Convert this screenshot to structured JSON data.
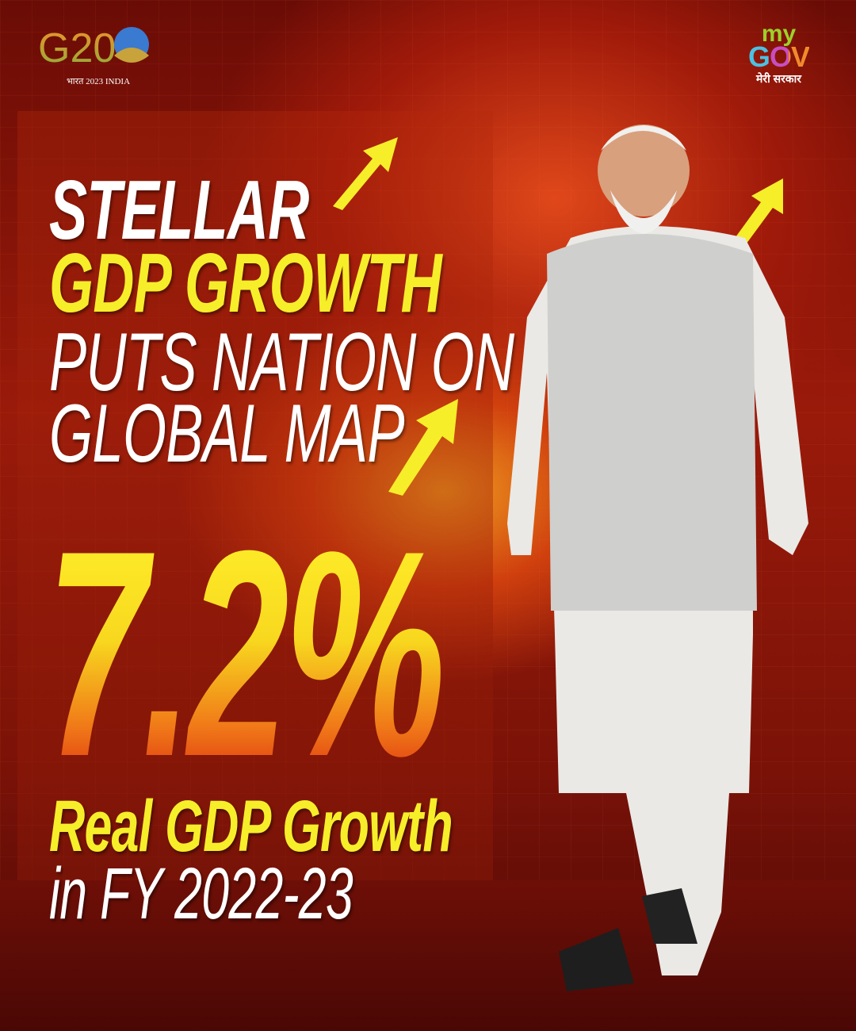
{
  "logos": {
    "g20": {
      "text": "G20",
      "subtitle": "भारत 2023 INDIA"
    },
    "mygov": {
      "my": "my",
      "gov": "GOV",
      "tagline": "मेरी सरकार"
    }
  },
  "headline": {
    "line1": "STELLAR",
    "line2": "GDP GROWTH",
    "line3": "PUTS NATION ON",
    "line4": "GLOBAL MAP"
  },
  "stat": {
    "value": "7.2%",
    "label": "Real GDP Growth",
    "period": "in FY 2022-23"
  },
  "colors": {
    "yellow": "#f7ee2a",
    "background": "#7a1208",
    "white": "#ffffff"
  }
}
